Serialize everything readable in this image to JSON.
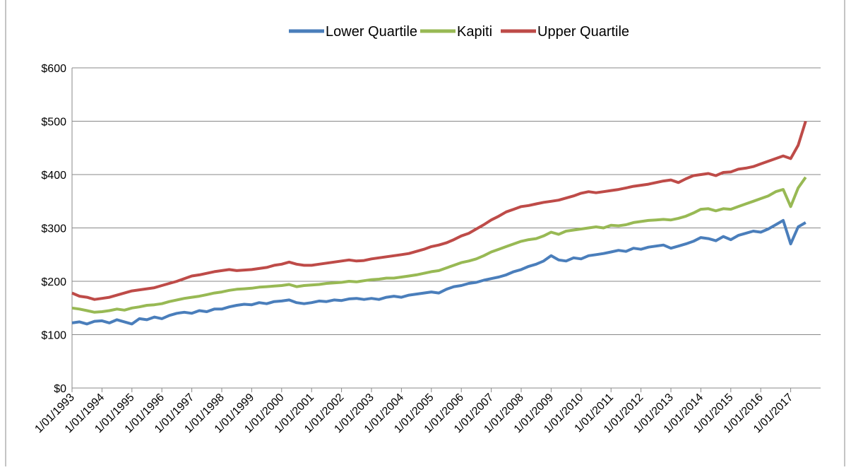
{
  "chart_data": {
    "type": "line",
    "categories": [
      "1/01/1993",
      null,
      null,
      null,
      "1/01/1994",
      null,
      null,
      null,
      "1/01/1995",
      null,
      null,
      null,
      "1/01/1996",
      null,
      null,
      null,
      "1/01/1997",
      null,
      null,
      null,
      "1/01/1998",
      null,
      null,
      null,
      "1/01/1999",
      null,
      null,
      null,
      "1/01/2000",
      null,
      null,
      null,
      "1/01/2001",
      null,
      null,
      null,
      "1/01/2002",
      null,
      null,
      null,
      "1/01/2003",
      null,
      null,
      null,
      "1/01/2004",
      null,
      null,
      null,
      "1/01/2005",
      null,
      null,
      null,
      "1/01/2006",
      null,
      null,
      null,
      "1/01/2007",
      null,
      null,
      null,
      "1/01/2008",
      null,
      null,
      null,
      "1/01/2009",
      null,
      null,
      null,
      "1/01/2010",
      null,
      null,
      null,
      "1/01/2011",
      null,
      null,
      null,
      "1/01/2012",
      null,
      null,
      null,
      "1/01/2013",
      null,
      null,
      null,
      "1/01/2014",
      null,
      null,
      null,
      "1/01/2015",
      null,
      null,
      null,
      "1/01/2016",
      null,
      null,
      null,
      "1/01/2017",
      null,
      null
    ],
    "series": [
      {
        "name": "Lower Quartile",
        "color": "#4a7ebb",
        "values": [
          122,
          124,
          120,
          125,
          126,
          122,
          128,
          124,
          120,
          130,
          128,
          133,
          130,
          136,
          140,
          142,
          140,
          145,
          143,
          148,
          148,
          152,
          155,
          157,
          156,
          160,
          158,
          162,
          163,
          165,
          160,
          158,
          160,
          163,
          162,
          165,
          164,
          167,
          168,
          166,
          168,
          166,
          170,
          172,
          170,
          174,
          176,
          178,
          180,
          178,
          185,
          190,
          192,
          196,
          198,
          202,
          205,
          208,
          212,
          218,
          222,
          228,
          232,
          238,
          248,
          240,
          238,
          244,
          242,
          248,
          250,
          252,
          255,
          258,
          256,
          262,
          260,
          264,
          266,
          268,
          262,
          266,
          270,
          275,
          282,
          280,
          276,
          284,
          278,
          286,
          290,
          294,
          292,
          298,
          306,
          314,
          270,
          302,
          310
        ]
      },
      {
        "name": "Kapiti",
        "color": "#98b954",
        "values": [
          150,
          148,
          145,
          142,
          143,
          145,
          148,
          146,
          150,
          152,
          155,
          156,
          158,
          162,
          165,
          168,
          170,
          172,
          175,
          178,
          180,
          183,
          185,
          186,
          187,
          189,
          190,
          191,
          192,
          194,
          190,
          192,
          193,
          194,
          196,
          197,
          198,
          200,
          199,
          201,
          203,
          204,
          206,
          206,
          208,
          210,
          212,
          215,
          218,
          220,
          225,
          230,
          235,
          238,
          242,
          248,
          255,
          260,
          265,
          270,
          275,
          278,
          280,
          285,
          292,
          288,
          294,
          296,
          298,
          300,
          302,
          300,
          305,
          304,
          306,
          310,
          312,
          314,
          315,
          316,
          315,
          318,
          322,
          328,
          335,
          336,
          332,
          336,
          335,
          340,
          345,
          350,
          355,
          360,
          368,
          372,
          340,
          375,
          395
        ]
      },
      {
        "name": "Upper Quartile",
        "color": "#be4b48",
        "values": [
          178,
          172,
          170,
          166,
          168,
          170,
          174,
          178,
          182,
          184,
          186,
          188,
          192,
          196,
          200,
          205,
          210,
          212,
          215,
          218,
          220,
          222,
          220,
          221,
          222,
          224,
          226,
          230,
          232,
          236,
          232,
          230,
          230,
          232,
          234,
          236,
          238,
          240,
          238,
          239,
          242,
          244,
          246,
          248,
          250,
          252,
          256,
          260,
          265,
          268,
          272,
          278,
          285,
          290,
          298,
          306,
          315,
          322,
          330,
          335,
          340,
          342,
          345,
          348,
          350,
          352,
          356,
          360,
          365,
          368,
          366,
          368,
          370,
          372,
          375,
          378,
          380,
          382,
          385,
          388,
          390,
          385,
          392,
          398,
          400,
          402,
          398,
          404,
          405,
          410,
          412,
          415,
          420,
          425,
          430,
          435,
          430,
          455,
          500
        ]
      }
    ],
    "ylim": [
      0,
      600
    ],
    "yticks": [
      {
        "value": 0,
        "label": "$0"
      },
      {
        "value": 100,
        "label": "$100"
      },
      {
        "value": 200,
        "label": "$200"
      },
      {
        "value": 300,
        "label": "$300"
      },
      {
        "value": 400,
        "label": "$400"
      },
      {
        "value": 500,
        "label": "$500"
      },
      {
        "value": 600,
        "label": "$600"
      }
    ],
    "grid": true,
    "legend": "top"
  }
}
